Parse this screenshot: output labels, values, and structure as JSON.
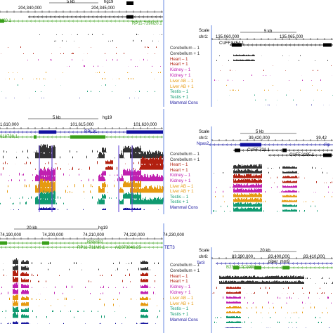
{
  "colors": {
    "cereb": "#333333",
    "heart": "#b22010",
    "kidney": "#c020b0",
    "liver": "#e69a10",
    "testis": "#0f9a70",
    "cons": "#1c1aa0",
    "green": "#3aa01a",
    "blue": "#1010a0",
    "border": "#6a8ae0"
  },
  "track_labels": [
    "Cerebellum – 1",
    "Cerebellum + 1",
    "Heart – 1",
    "Heart + 1",
    "Kidney – 1",
    "Kidney + 1",
    "Liver AB – 1",
    "Liver AB + 1",
    "Testis – 1",
    "Testis + 1",
    "Mammal Cons"
  ],
  "panels": {
    "tl": {
      "scale": "5 kb",
      "assembly": "hg19",
      "coords": [
        "204,340,000",
        "204,345,000"
      ],
      "genes": [
        "RP11-739N20.1"
      ],
      "gene_prefix": "N20.1"
    },
    "tr": {
      "scale_word": "Scale",
      "chr": "chr1:",
      "scale": "5 kb",
      "coords": [
        "135,060,000",
        "135,065,000"
      ],
      "genes": [
        "CUFF.8454.1"
      ]
    },
    "ml": {
      "scale": "5 kb",
      "assembly": "hg19",
      "coords": [
        "1,610,000",
        "101,615,000",
        "101,620,000"
      ],
      "genes": [
        "RPL31"
      ],
      "gene_prefix": "018738.1"
    },
    "mr": {
      "scale_word": "Scale",
      "chr": "chr1:",
      "scale": "5 kb",
      "coords": [
        "39,420,000",
        "39,42"
      ],
      "genes": [
        "Npas2",
        "CUFF.721.1",
        "CUFF.2195.1",
        "Rp"
      ]
    },
    "bl": {
      "scale": "20 kb",
      "assembly": "hg19",
      "coords": [
        "74,190,000",
        "74,200,000",
        "74,210,000",
        "74,220,000",
        "74,230,000"
      ],
      "genes": [
        "RN5S97",
        "RP11-711M9.1",
        "AC073046.25",
        "TET3"
      ]
    },
    "br": {
      "scale_word": "Scale",
      "chr": "chr6:",
      "scale": "20 kb",
      "coords": [
        "83,390,000",
        "83,400,000",
        "83,410,000"
      ],
      "genes": [
        "Tet3",
        "piper_mm9",
        "B230317C09Rik",
        "AC073046.25"
      ]
    }
  }
}
